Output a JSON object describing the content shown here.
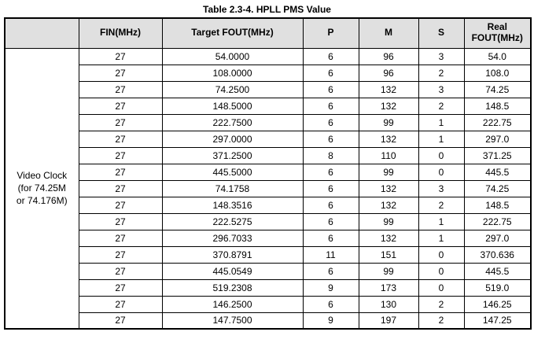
{
  "title": "Table 2.3-4. HPLL PMS Value",
  "table": {
    "row_group_label": "Video Clock\n(for 74.25M\nor 74.176M)",
    "columns": [
      "",
      "FIN(MHz)",
      "Target FOUT(MHz)",
      "P",
      "M",
      "S",
      "Real FOUT(MHz)"
    ],
    "column_keys": [
      "fin",
      "target-fout",
      "p",
      "m",
      "s",
      "real-fout"
    ],
    "rows": [
      [
        "27",
        "54.0000",
        "6",
        "96",
        "3",
        "54.0"
      ],
      [
        "27",
        "108.0000",
        "6",
        "96",
        "2",
        "108.0"
      ],
      [
        "27",
        "74.2500",
        "6",
        "132",
        "3",
        "74.25"
      ],
      [
        "27",
        "148.5000",
        "6",
        "132",
        "2",
        "148.5"
      ],
      [
        "27",
        "222.7500",
        "6",
        "99",
        "1",
        "222.75"
      ],
      [
        "27",
        "297.0000",
        "6",
        "132",
        "1",
        "297.0"
      ],
      [
        "27",
        "371.2500",
        "8",
        "110",
        "0",
        "371.25"
      ],
      [
        "27",
        "445.5000",
        "6",
        "99",
        "0",
        "445.5"
      ],
      [
        "27",
        "74.1758",
        "6",
        "132",
        "3",
        "74.25"
      ],
      [
        "27",
        "148.3516",
        "6",
        "132",
        "2",
        "148.5"
      ],
      [
        "27",
        "222.5275",
        "6",
        "99",
        "1",
        "222.75"
      ],
      [
        "27",
        "296.7033",
        "6",
        "132",
        "1",
        "297.0"
      ],
      [
        "27",
        "370.8791",
        "11",
        "151",
        "0",
        "370.636"
      ],
      [
        "27",
        "445.0549",
        "6",
        "99",
        "0",
        "445.5"
      ],
      [
        "27",
        "519.2308",
        "9",
        "173",
        "0",
        "519.0"
      ],
      [
        "27",
        "146.2500",
        "6",
        "130",
        "2",
        "146.25"
      ],
      [
        "27",
        "147.7500",
        "9",
        "197",
        "2",
        "147.25"
      ]
    ],
    "colors": {
      "header_bg": "#e0e0e0",
      "border": "#000000",
      "text": "#000000"
    }
  }
}
